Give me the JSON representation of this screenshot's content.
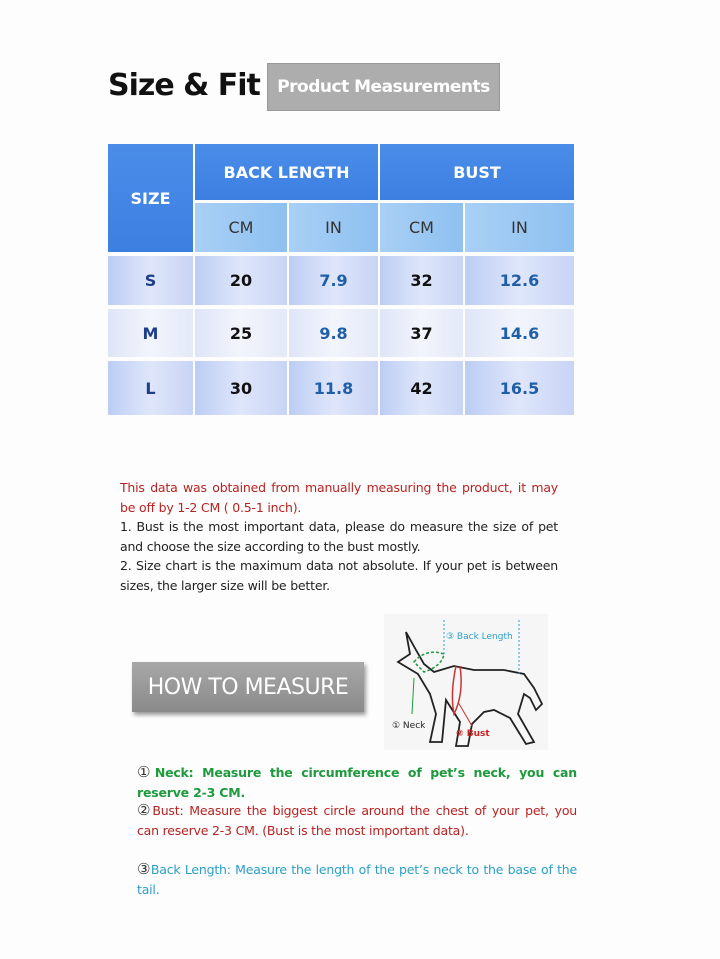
{
  "header": {
    "title": "Size & Fit",
    "badge": "Product Measurements"
  },
  "table": {
    "size_header": "SIZE",
    "groups": [
      "BACK LENGTH",
      "BUST"
    ],
    "units": [
      "CM",
      "IN",
      "CM",
      "IN"
    ],
    "rows": [
      {
        "size": "S",
        "values": [
          "20",
          "7.9",
          "32",
          "12.6"
        ]
      },
      {
        "size": "M",
        "values": [
          "25",
          "9.8",
          "37",
          "14.6"
        ]
      },
      {
        "size": "L",
        "values": [
          "30",
          "11.8",
          "42",
          "16.5"
        ]
      }
    ]
  },
  "notes": {
    "disclaimer": "This data was obtained from manually measuring the product, it may be off by 1-2 CM ( 0.5-1 inch).",
    "items": [
      "1.  Bust is the most important data, please do measure the size of pet and choose the size according to the bust mostly.",
      "2.  Size chart is the maximum data not absolute. If your pet is between sizes, the larger size will be better."
    ]
  },
  "how_to": {
    "button": "HOW TO MEASURE",
    "diagram_labels": {
      "neck": "① Neck",
      "bust": "② Bust",
      "back": "③ Back Length"
    },
    "steps": [
      {
        "num": "①",
        "text": "Neck: Measure the circumference of pet’s neck, you can reserve 2-3 CM.",
        "color": "#1e9a3c"
      },
      {
        "num": "②",
        "text": "Bust: Measure the biggest circle around the chest of your pet, you can reserve 2-3 CM. (Bust is the most important data).",
        "color": "#b82222"
      },
      {
        "num": "③",
        "text": "Back Length: Measure the length of the pet’s neck to the base of the tail.",
        "color": "#2b9fc8"
      }
    ]
  }
}
